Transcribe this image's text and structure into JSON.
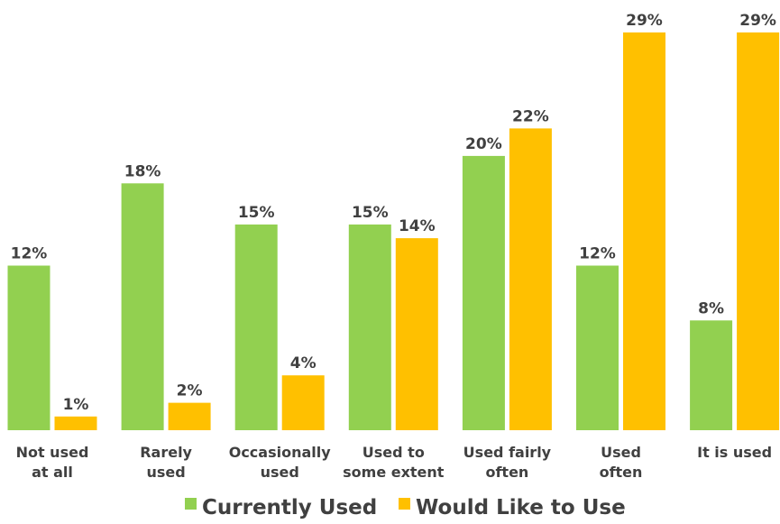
{
  "chart_data": {
    "type": "bar",
    "categories": [
      [
        "Not used",
        "at all"
      ],
      [
        "Rarely",
        "used"
      ],
      [
        "Occasionally",
        "used"
      ],
      [
        "Used to",
        "some extent"
      ],
      [
        "Used fairly",
        "often"
      ],
      [
        "Used",
        "often"
      ],
      [
        "It is used"
      ]
    ],
    "series": [
      {
        "name": "Currently Used",
        "color": "#92d050",
        "values": [
          12,
          18,
          15,
          15,
          20,
          12,
          8
        ],
        "labels": [
          "12%",
          "18%",
          "15%",
          "15%",
          "20%",
          "12%",
          "8%"
        ]
      },
      {
        "name": "Would Like to Use",
        "color": "#ffc000",
        "values": [
          1,
          2,
          4,
          14,
          22,
          29,
          29
        ],
        "labels": [
          "1%",
          "2%",
          "4%",
          "14%",
          "22%",
          "29%",
          "29%"
        ]
      }
    ],
    "ylim": [
      0,
      29
    ],
    "grid": false,
    "legend_position": "bottom"
  }
}
